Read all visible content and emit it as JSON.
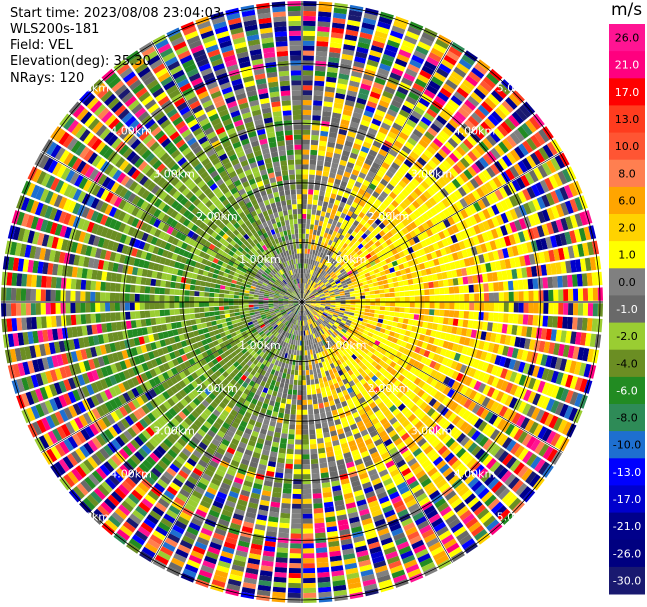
{
  "info": {
    "start_time": "Start time: 2023/08/08 23:04:03",
    "instrument": "WLS200s-181",
    "field": "Field: VEL",
    "elevation": "Elevation(deg): 35.30",
    "nrays": "NRays: 120"
  },
  "colorbar": {
    "unit": "m/s",
    "bins": [
      {
        "label": "26.0",
        "color": "#ff1493"
      },
      {
        "label": "21.0",
        "color": "#ff007f"
      },
      {
        "label": "17.0",
        "color": "#ff0000"
      },
      {
        "label": "13.0",
        "color": "#ff3c1e"
      },
      {
        "label": "10.0",
        "color": "#ff5533"
      },
      {
        "label": "8.0",
        "color": "#ff7f50"
      },
      {
        "label": "6.0",
        "color": "#ffa500"
      },
      {
        "label": "2.0",
        "color": "#ffd200"
      },
      {
        "label": "1.0",
        "color": "#ffff00"
      },
      {
        "label": "0.0",
        "color": "#808080"
      },
      {
        "label": "-1.0",
        "color": "#696969"
      },
      {
        "label": "-2.0",
        "color": "#9acd32"
      },
      {
        "label": "-4.0",
        "color": "#6b8e23"
      },
      {
        "label": "-6.0",
        "color": "#228b22"
      },
      {
        "label": "-8.0",
        "color": "#2e8b57"
      },
      {
        "label": "-10.0",
        "color": "#1e6fd0"
      },
      {
        "label": "-13.0",
        "color": "#0000ff"
      },
      {
        "label": "-17.0",
        "color": "#0000cd"
      },
      {
        "label": "-21.0",
        "color": "#00008b"
      },
      {
        "label": "-26.0",
        "color": "#000080"
      },
      {
        "label": "-30.0",
        "color": "#191970"
      }
    ]
  },
  "chart_data": {
    "type": "heatmap",
    "projection": "polar",
    "field": "VEL",
    "unit": "m/s",
    "nrays": 120,
    "range_rings_km": [
      1,
      2,
      3,
      4,
      5
    ],
    "ring_labels": [
      "1.00km",
      "2.00km",
      "3.00km",
      "4.00km",
      "5.00km"
    ],
    "pattern": "positive velocities (yellow) toward the east, negative velocities (green) toward the west, near-zero (gray) around the centre, noisy random colours at the outer ranges"
  }
}
